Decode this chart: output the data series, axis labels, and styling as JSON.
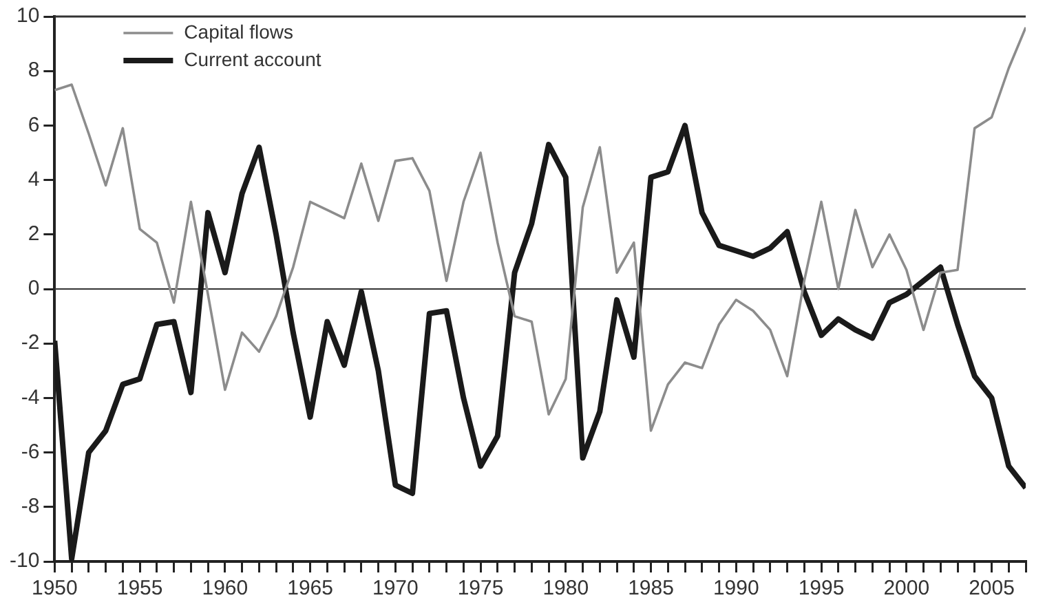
{
  "chart_data": {
    "type": "line",
    "x": [
      1950,
      1951,
      1952,
      1953,
      1954,
      1955,
      1956,
      1957,
      1958,
      1959,
      1960,
      1961,
      1962,
      1963,
      1964,
      1965,
      1966,
      1967,
      1968,
      1969,
      1970,
      1971,
      1972,
      1973,
      1974,
      1975,
      1976,
      1977,
      1978,
      1979,
      1980,
      1981,
      1982,
      1983,
      1984,
      1985,
      1986,
      1987,
      1988,
      1989,
      1990,
      1991,
      1992,
      1993,
      1994,
      1995,
      1996,
      1997,
      1998,
      1999,
      2000,
      2001,
      2002,
      2003,
      2004,
      2005,
      2006,
      2007
    ],
    "series": [
      {
        "name": "Capital flows",
        "color": "#8c8c8c",
        "values": [
          7.3,
          7.5,
          5.7,
          3.8,
          5.9,
          2.2,
          1.7,
          -0.5,
          3.2,
          -0.2,
          -3.7,
          -1.6,
          -2.3,
          -1.0,
          0.8,
          3.2,
          2.9,
          2.6,
          4.6,
          2.5,
          4.7,
          4.8,
          3.6,
          0.3,
          3.2,
          5.0,
          1.7,
          -1.0,
          -1.2,
          -4.6,
          -3.3,
          3.0,
          5.2,
          0.6,
          1.7,
          -5.2,
          -3.5,
          -2.7,
          -2.9,
          -1.3,
          -0.4,
          -0.8,
          -1.5,
          -3.2,
          0.3,
          3.2,
          0.0,
          2.9,
          0.8,
          2.0,
          0.7,
          -1.5,
          0.6,
          0.7,
          5.9,
          6.3,
          8.1,
          9.6
        ]
      },
      {
        "name": "Current account",
        "color": "#1a1a1a",
        "values": [
          -1.9,
          -9.9,
          -6.0,
          -5.2,
          -3.5,
          -3.3,
          -1.3,
          -1.2,
          -3.8,
          2.8,
          0.6,
          3.5,
          5.2,
          2.0,
          -1.6,
          -4.7,
          -1.2,
          -2.8,
          -0.1,
          -3.0,
          -7.2,
          -7.5,
          -0.9,
          -0.8,
          -4.0,
          -6.5,
          -5.4,
          0.6,
          2.4,
          5.3,
          4.1,
          -6.2,
          -4.5,
          -0.4,
          -2.5,
          4.1,
          4.3,
          6.0,
          2.8,
          1.6,
          1.4,
          1.2,
          1.5,
          2.1,
          -0.1,
          -1.7,
          -1.1,
          -1.5,
          -1.8,
          -0.5,
          -0.2,
          0.3,
          0.8,
          -1.3,
          -3.2,
          -4.0,
          -6.5,
          -7.3
        ]
      }
    ],
    "xlim": [
      1950,
      2007
    ],
    "xticks": [
      1950,
      {
        "value": 1951,
        "label": null
      },
      {
        "value": 1952,
        "label": null
      },
      {
        "value": 1953,
        "label": null
      },
      {
        "value": 1954,
        "label": null
      },
      1955,
      {
        "value": 1956,
        "label": null
      },
      {
        "value": 1957,
        "label": null
      },
      {
        "value": 1958,
        "label": null
      },
      {
        "value": 1959,
        "label": null
      },
      1960,
      {
        "value": 1961,
        "label": null
      },
      {
        "value": 1962,
        "label": null
      },
      {
        "value": 1963,
        "label": null
      },
      {
        "value": 1964,
        "label": null
      },
      1965,
      {
        "value": 1966,
        "label": null
      },
      {
        "value": 1967,
        "label": null
      },
      {
        "value": 1968,
        "label": null
      },
      {
        "value": 1969,
        "label": null
      },
      1970,
      {
        "value": 1971,
        "label": null
      },
      {
        "value": 1972,
        "label": null
      },
      {
        "value": 1973,
        "label": null
      },
      {
        "value": 1974,
        "label": null
      },
      1975,
      {
        "value": 1976,
        "label": null
      },
      {
        "value": 1977,
        "label": null
      },
      {
        "value": 1978,
        "label": null
      },
      {
        "value": 1979,
        "label": null
      },
      1980,
      {
        "value": 1981,
        "label": null
      },
      {
        "value": 1982,
        "label": null
      },
      {
        "value": 1983,
        "label": null
      },
      {
        "value": 1984,
        "label": null
      },
      1985,
      {
        "value": 1986,
        "label": null
      },
      {
        "value": 1987,
        "label": null
      },
      {
        "value": 1988,
        "label": null
      },
      {
        "value": 1989,
        "label": null
      },
      1990,
      {
        "value": 1991,
        "label": null
      },
      {
        "value": 1992,
        "label": null
      },
      {
        "value": 1993,
        "label": null
      },
      {
        "value": 1994,
        "label": null
      },
      1995,
      {
        "value": 1996,
        "label": null
      },
      {
        "value": 1997,
        "label": null
      },
      {
        "value": 1998,
        "label": null
      },
      {
        "value": 1999,
        "label": null
      },
      2000,
      {
        "value": 2001,
        "label": null
      },
      {
        "value": 2002,
        "label": null
      },
      {
        "value": 2003,
        "label": null
      },
      {
        "value": 2004,
        "label": null
      },
      2005,
      {
        "value": 2006,
        "label": null
      },
      {
        "value": 2007,
        "label": null
      }
    ],
    "ylim": [
      -10,
      10
    ],
    "yticks": [
      -10,
      -8,
      -6,
      -4,
      -2,
      0,
      2,
      4,
      6,
      8,
      10
    ],
    "ref_lines": [
      {
        "axis": "y",
        "value": 0,
        "color": "#333333"
      }
    ],
    "grid": false,
    "legend": "top left",
    "marker": "none",
    "line_style": "solid"
  }
}
